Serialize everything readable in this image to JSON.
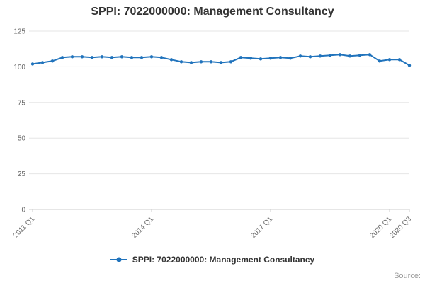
{
  "title": "SPPI: 7022000000: Management Consultancy",
  "legend": {
    "label": "SPPI: 7022000000: Management Consultancy"
  },
  "source_label": "Source:",
  "colors": {
    "line": "#2073bc",
    "grid": "#e6e6e6",
    "axis": "#cccccc",
    "tick_text": "#666666",
    "title_text": "#333333"
  },
  "chart_data": {
    "type": "line",
    "title": "SPPI: 7022000000: Management Consultancy",
    "series_name": "SPPI: 7022000000: Management Consultancy",
    "x": [
      "2011 Q1",
      "2011 Q2",
      "2011 Q3",
      "2011 Q4",
      "2012 Q1",
      "2012 Q2",
      "2012 Q3",
      "2012 Q4",
      "2013 Q1",
      "2013 Q2",
      "2013 Q3",
      "2013 Q4",
      "2014 Q1",
      "2014 Q2",
      "2014 Q3",
      "2014 Q4",
      "2015 Q1",
      "2015 Q2",
      "2015 Q3",
      "2015 Q4",
      "2016 Q1",
      "2016 Q2",
      "2016 Q3",
      "2016 Q4",
      "2017 Q1",
      "2017 Q2",
      "2017 Q3",
      "2017 Q4",
      "2018 Q1",
      "2018 Q2",
      "2018 Q3",
      "2018 Q4",
      "2019 Q1",
      "2019 Q2",
      "2019 Q3",
      "2019 Q4",
      "2020 Q1",
      "2020 Q2",
      "2020 Q3"
    ],
    "values": [
      102,
      103,
      104,
      106.5,
      107,
      107,
      106.5,
      107,
      106.5,
      107,
      106.5,
      106.5,
      107,
      106.5,
      105,
      103.5,
      103,
      103.5,
      103.5,
      103,
      103.5,
      106.5,
      106,
      105.5,
      106,
      106.5,
      106,
      107.5,
      107,
      107.5,
      108,
      108.5,
      107.5,
      108,
      108.5,
      104,
      105,
      105,
      101
    ],
    "ylim": [
      0,
      125
    ],
    "yticks": [
      0,
      25,
      50,
      75,
      100,
      125
    ],
    "xtick_labels": [
      "2011 Q1",
      "2014 Q1",
      "2017 Q1",
      "2020 Q1",
      "2020 Q3"
    ],
    "xtick_indices": [
      0,
      12,
      24,
      36,
      38
    ],
    "xlabel": "",
    "ylabel": "",
    "grid": "horizontal",
    "legend_position": "bottom"
  }
}
